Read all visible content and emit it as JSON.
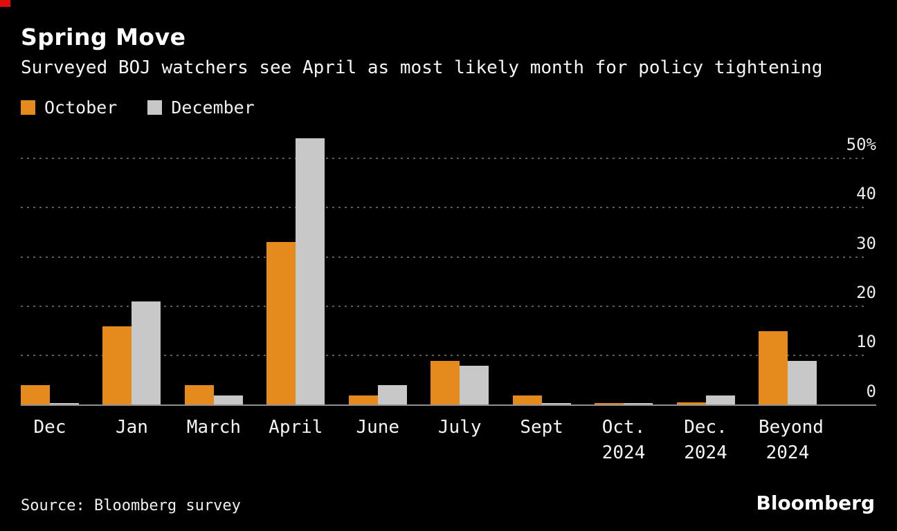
{
  "meta": {
    "background_color": "#000000",
    "accent_orange": "#E58A1D",
    "accent_gray": "#C8C8C8",
    "gridline_color": "#5D5D5D"
  },
  "header": {
    "title": "Spring Move",
    "subtitle": "Surveyed BOJ watchers see April as most likely month for policy tightening"
  },
  "legend": [
    {
      "label": "October",
      "color": "#E58A1D"
    },
    {
      "label": "December",
      "color": "#C8C8C8"
    }
  ],
  "chart_data": {
    "type": "bar",
    "title": "Spring Move",
    "subtitle": "Surveyed BOJ watchers see April as most likely month for policy tightening",
    "unit": "%",
    "categories": [
      "Dec",
      "Jan",
      "March",
      "April",
      "June",
      "July",
      "Sept",
      "Oct. 2024",
      "Dec. 2024",
      "Beyond 2024"
    ],
    "xtick_labels": [
      "Dec",
      "Jan",
      "March",
      "April",
      "June",
      "July",
      "Sept",
      "Oct.\n2024",
      "Dec.\n2024",
      "Beyond\n2024"
    ],
    "series": [
      {
        "name": "October",
        "color": "#E58A1D",
        "values": [
          4,
          16,
          4,
          33,
          2,
          9,
          2,
          0.4,
          0.6,
          15
        ]
      },
      {
        "name": "December",
        "color": "#C8C8C8",
        "values": [
          0.4,
          21,
          2,
          54,
          4,
          8,
          0.4,
          0.4,
          2,
          9
        ]
      }
    ],
    "ytick_values": [
      0,
      10,
      20,
      30,
      40,
      50
    ],
    "ytick_labels": [
      "0",
      "10",
      "20",
      "30",
      "40",
      "50%"
    ],
    "ylim": [
      0,
      56
    ],
    "grid": "dotted horizontal",
    "legend_position": "top-left",
    "yaxis_side": "right"
  },
  "footer": {
    "source": "Source: Bloomberg survey",
    "logo": "Bloomberg"
  }
}
